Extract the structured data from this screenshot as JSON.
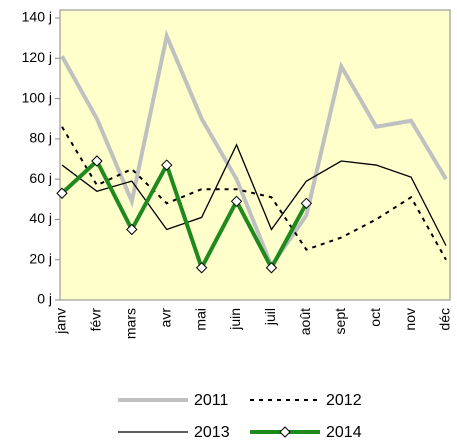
{
  "chart_data": {
    "type": "line",
    "categories": [
      "janv",
      "févr",
      "mars",
      "avr",
      "mai",
      "juin",
      "juil",
      "août",
      "sept",
      "oct",
      "nov",
      "déc"
    ],
    "series": [
      {
        "name": "2011",
        "color": "#c0c0c0",
        "style": "solid",
        "width": 4,
        "values": [
          121,
          90,
          49,
          131,
          90,
          60,
          17,
          42,
          116,
          86,
          89,
          60
        ]
      },
      {
        "name": "2012",
        "color": "#000000",
        "style": "dotted",
        "width": 2,
        "values": [
          86,
          57,
          65,
          48,
          55,
          55,
          51,
          25,
          31,
          40,
          51,
          20
        ]
      },
      {
        "name": "2013",
        "color": "#000000",
        "style": "solid",
        "width": 1.3,
        "values": [
          67,
          54,
          59,
          35,
          41,
          77,
          35,
          59,
          69,
          67,
          61,
          27
        ]
      },
      {
        "name": "2014",
        "color": "#1e8a1e",
        "style": "solid",
        "width": 4,
        "marker": "diamond",
        "values": [
          53,
          69,
          35,
          67,
          16,
          49,
          16,
          48,
          null,
          null,
          null,
          null
        ]
      }
    ],
    "ylim": [
      0,
      140
    ],
    "yticks": [
      {
        "value": 0,
        "label": "0 j"
      },
      {
        "value": 20,
        "label": "20 j"
      },
      {
        "value": 40,
        "label": "40 j"
      },
      {
        "value": 60,
        "label": "60 j"
      },
      {
        "value": 80,
        "label": "80 j"
      },
      {
        "value": 100,
        "label": "100 j"
      },
      {
        "value": 120,
        "label": "120 j"
      },
      {
        "value": 140,
        "label": "140 j"
      }
    ],
    "background": "#ffffcc",
    "legend": "bottom"
  }
}
